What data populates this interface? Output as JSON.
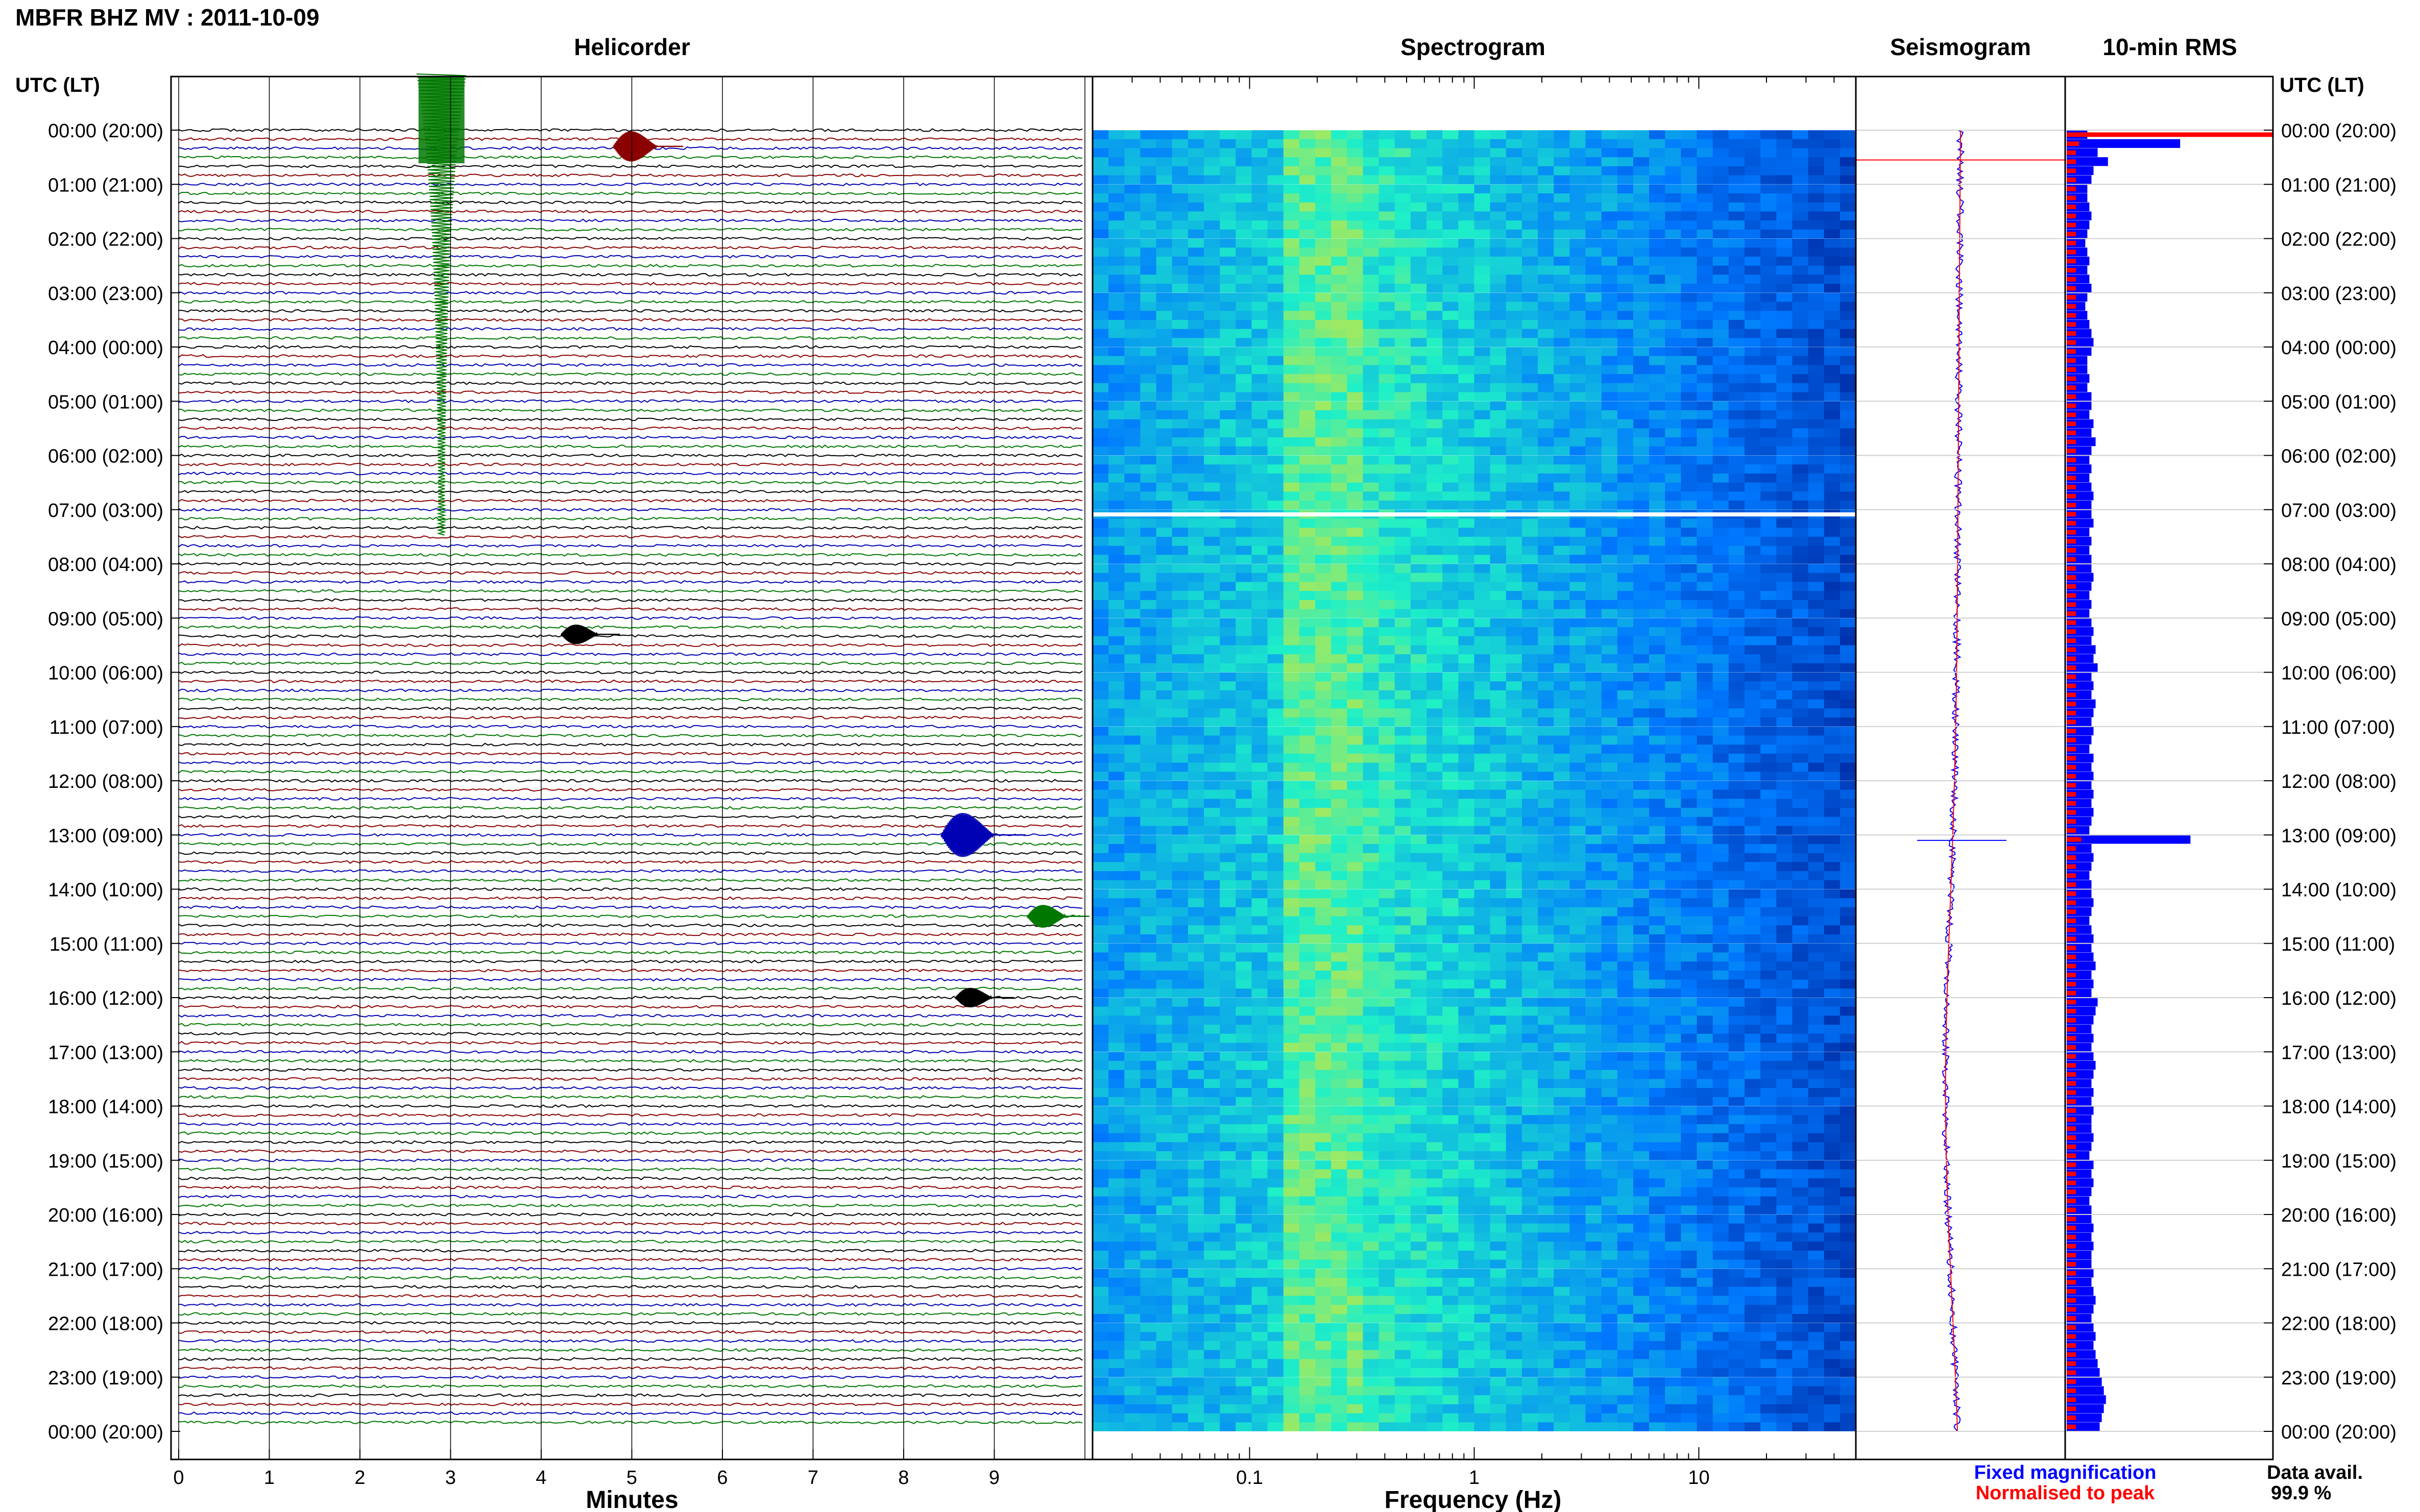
{
  "header": {
    "station_title": "MBFR BHZ MV : 2011-10-09"
  },
  "panels": {
    "helicorder": "Helicorder",
    "spectrogram": "Spectrogram",
    "seismogram": "Seismogram",
    "rms": "10-min RMS"
  },
  "time_axis": {
    "label": "UTC (LT)",
    "ticks": [
      "00:00 (20:00)",
      "01:00 (21:00)",
      "02:00 (22:00)",
      "03:00 (23:00)",
      "04:00 (00:00)",
      "05:00 (01:00)",
      "06:00 (02:00)",
      "07:00 (03:00)",
      "08:00 (04:00)",
      "09:00 (05:00)",
      "10:00 (06:00)",
      "11:00 (07:00)",
      "12:00 (08:00)",
      "13:00 (09:00)",
      "14:00 (10:00)",
      "15:00 (11:00)",
      "16:00 (12:00)",
      "17:00 (13:00)",
      "18:00 (14:00)",
      "19:00 (15:00)",
      "20:00 (16:00)",
      "21:00 (17:00)",
      "22:00 (18:00)",
      "23:00 (19:00)",
      "00:00 (20:00)"
    ]
  },
  "footer": {
    "fixed_magnification": "Fixed magnification",
    "normalised_to_peak": "Normalised to peak",
    "data_avail_label": "Data avail.",
    "data_avail_value": "99.9 %"
  },
  "colors": {
    "trace_cycle": [
      "#000000",
      "#8b0000",
      "#0000b4",
      "#007800"
    ],
    "rms_fixed": "#0000ff",
    "rms_normalised": "#ff0000"
  },
  "chart_data": [
    {
      "type": "line",
      "panel": "helicorder",
      "xlabel": "Minutes",
      "x_ticks": [
        "0",
        "1",
        "2",
        "3",
        "4",
        "5",
        "6",
        "7",
        "8",
        "9"
      ],
      "xlim": [
        0,
        10
      ],
      "rows_per_hour": 6,
      "row_minutes": 10,
      "events": [
        {
          "hour": 0.0,
          "minute": 2.9,
          "amp": 1.0,
          "color": "#007800",
          "label_kind": "large"
        },
        {
          "hour": 0.3,
          "minute": 4.95,
          "amp": 0.22,
          "color": "#8b0000"
        },
        {
          "hour": 13.0,
          "minute": 8.6,
          "amp": 0.35,
          "color": "#0000b4"
        },
        {
          "hour": 14.5,
          "minute": 9.5,
          "amp": 0.15,
          "color": "#007800"
        },
        {
          "hour": 16.0,
          "minute": 8.7,
          "amp": 0.12,
          "color": "#000000"
        },
        {
          "hour": 9.3,
          "minute": 4.35,
          "amp": 0.12,
          "color": "#000000"
        }
      ]
    },
    {
      "type": "heatmap",
      "panel": "spectrogram",
      "xlabel": "Frequency (Hz)",
      "x_scale": "log",
      "xlim": [
        0.02,
        50
      ],
      "x_tick_labels": [
        "0.1",
        "1",
        "10"
      ],
      "x_tick_values": [
        0.1,
        1,
        10
      ],
      "peak_band_hz": [
        0.15,
        0.3
      ]
    },
    {
      "type": "line",
      "panel": "seismogram",
      "ylim_hours": [
        0,
        24
      ]
    },
    {
      "type": "bar",
      "panel": "rms",
      "series": [
        {
          "name": "Fixed magnification",
          "color": "#0000ff",
          "values": [
            0.1,
            0.55,
            0.15,
            0.2,
            0.13,
            0.12,
            0.1,
            0.1,
            0.11,
            0.12,
            0.11,
            0.1,
            0.09,
            0.1,
            0.11,
            0.1,
            0.11,
            0.12,
            0.1,
            0.09,
            0.1,
            0.11,
            0.12,
            0.13,
            0.12,
            0.1,
            0.1,
            0.11,
            0.1,
            0.12,
            0.12,
            0.11,
            0.13,
            0.12,
            0.14,
            0.12,
            0.11,
            0.12,
            0.11,
            0.12,
            0.13,
            0.12,
            0.12,
            0.13,
            0.11,
            0.12,
            0.11,
            0.12,
            0.12,
            0.13,
            0.12,
            0.11,
            0.12,
            0.11,
            0.12,
            0.13,
            0.12,
            0.14,
            0.13,
            0.15,
            0.12,
            0.13,
            0.12,
            0.14,
            0.13,
            0.12,
            0.13,
            0.12,
            0.11,
            0.13,
            0.12,
            0.13,
            0.12,
            0.13,
            0.12,
            0.13,
            0.12,
            0.11,
            0.6,
            0.12,
            0.13,
            0.12,
            0.11,
            0.12,
            0.12,
            0.13,
            0.12,
            0.11,
            0.12,
            0.13,
            0.12,
            0.13,
            0.14,
            0.12,
            0.13,
            0.12,
            0.15,
            0.14,
            0.13,
            0.12,
            0.13,
            0.12,
            0.13,
            0.14,
            0.13,
            0.12,
            0.13,
            0.12,
            0.13,
            0.12,
            0.12,
            0.13,
            0.12,
            0.11,
            0.13,
            0.12,
            0.13,
            0.12,
            0.11,
            0.12,
            0.12,
            0.13,
            0.12,
            0.13,
            0.12,
            0.12,
            0.13,
            0.12,
            0.13,
            0.14,
            0.13,
            0.12,
            0.13,
            0.14,
            0.13,
            0.14,
            0.15,
            0.16,
            0.17,
            0.18,
            0.19,
            0.18,
            0.17,
            0.16
          ]
        },
        {
          "name": "Normalised to peak",
          "color": "#ff0000",
          "values": [
            1.0,
            0.06,
            0.04,
            0.03,
            0.03,
            0.03,
            0.02,
            0.02,
            0.02,
            0.02,
            0.02,
            0.02,
            0.02,
            0.02,
            0.02,
            0.02,
            0.02,
            0.02,
            0.02,
            0.02,
            0.02,
            0.02,
            0.02,
            0.02,
            0.02,
            0.02,
            0.02,
            0.02,
            0.02,
            0.02,
            0.02,
            0.02,
            0.02,
            0.02,
            0.02,
            0.02,
            0.02,
            0.02,
            0.02,
            0.02,
            0.02,
            0.02,
            0.02,
            0.02,
            0.02,
            0.02,
            0.02,
            0.02,
            0.02,
            0.02,
            0.02,
            0.02,
            0.02,
            0.02,
            0.02,
            0.02,
            0.02,
            0.02,
            0.02,
            0.02,
            0.02,
            0.02,
            0.02,
            0.02,
            0.02,
            0.02,
            0.02,
            0.02,
            0.02,
            0.02,
            0.02,
            0.02,
            0.02,
            0.02,
            0.02,
            0.02,
            0.02,
            0.02,
            0.07,
            0.02,
            0.02,
            0.02,
            0.02,
            0.02,
            0.02,
            0.02,
            0.02,
            0.02,
            0.02,
            0.02,
            0.02,
            0.02,
            0.02,
            0.02,
            0.02,
            0.02,
            0.02,
            0.02,
            0.02,
            0.02,
            0.02,
            0.02,
            0.02,
            0.02,
            0.02,
            0.02,
            0.02,
            0.02,
            0.02,
            0.02,
            0.02,
            0.02,
            0.02,
            0.02,
            0.02,
            0.02,
            0.02,
            0.02,
            0.02,
            0.02,
            0.02,
            0.02,
            0.02,
            0.02,
            0.02,
            0.02,
            0.02,
            0.02,
            0.02,
            0.02,
            0.02,
            0.02,
            0.02,
            0.02,
            0.02,
            0.02,
            0.02,
            0.02,
            0.02,
            0.02,
            0.02,
            0.02,
            0.02,
            0.02
          ]
        }
      ]
    }
  ]
}
